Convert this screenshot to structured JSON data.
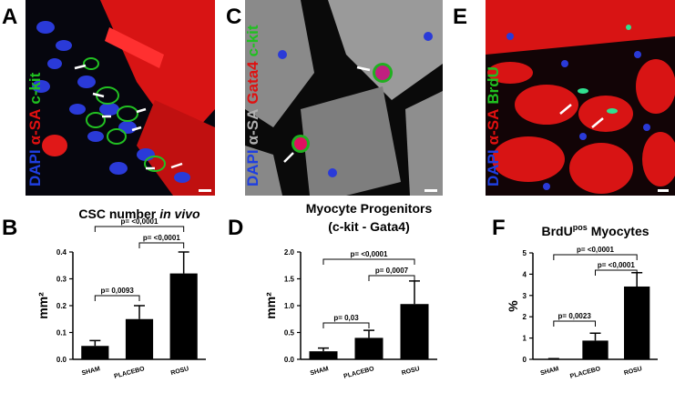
{
  "images": [
    {
      "letter": "A",
      "stains": [
        {
          "text": "DAPI",
          "color": "#1f3fe0"
        },
        {
          "text": "α-SA",
          "color": "#e01010"
        },
        {
          "text": "c-kit",
          "color": "#20c020"
        }
      ]
    },
    {
      "letter": "C",
      "stains": [
        {
          "text": "DAPI",
          "color": "#1f3fe0"
        },
        {
          "text": "α-SA",
          "color": "#b0b0b0"
        },
        {
          "text": "Gata4",
          "color": "#e01010"
        },
        {
          "text": "c-kit",
          "color": "#20c020"
        }
      ]
    },
    {
      "letter": "E",
      "stains": [
        {
          "text": "DAPI",
          "color": "#1f3fe0"
        },
        {
          "text": "α-SA",
          "color": "#e01010"
        },
        {
          "text": "BrdU",
          "color": "#20c020"
        }
      ]
    }
  ],
  "chart_data": [
    {
      "type": "bar",
      "panel": "B",
      "title": [
        [
          {
            "text": "CSC number"
          },
          {
            "text": "in vivo",
            "style": "italic"
          }
        ]
      ],
      "ylabel": "mm²",
      "categories": [
        "SHAM",
        "PLACEBO",
        "ROSU"
      ],
      "values": [
        0.05,
        0.15,
        0.32
      ],
      "errors": [
        0.02,
        0.05,
        0.08
      ],
      "color": "#000000",
      "ylim": [
        0,
        0.4
      ],
      "yticks": [
        {
          "value": 0,
          "label": "0.0"
        },
        0.1,
        0.2,
        0.3,
        0.4
      ],
      "comparisons": [
        {
          "pair": [
            0,
            1
          ],
          "label": "p= 0,0093"
        },
        {
          "pair": [
            0,
            2
          ],
          "label": "p= <0,0001"
        },
        {
          "pair": [
            1,
            2
          ],
          "label": "p= <0,0001"
        }
      ]
    },
    {
      "type": "bar",
      "panel": "D",
      "title": [
        [
          {
            "text": "Myocyte Progenitors"
          }
        ],
        [
          {
            "text": "(c-kit - Gata4)"
          }
        ]
      ],
      "ylabel": "mm²",
      "categories": [
        "SHAM",
        "PLACEBO",
        "ROSU"
      ],
      "values": [
        0.15,
        0.4,
        1.03
      ],
      "errors": [
        0.06,
        0.14,
        0.43
      ],
      "color": "#000000",
      "ylim": [
        0,
        2
      ],
      "yticks": [
        {
          "value": 0,
          "label": "0.0"
        },
        0.5,
        {
          "value": 1,
          "label": "1.0"
        },
        1.5,
        {
          "value": 2,
          "label": "2.0"
        }
      ],
      "comparisons": [
        {
          "pair": [
            0,
            1
          ],
          "label": "p= 0,03"
        },
        {
          "pair": [
            0,
            2
          ],
          "label": "p= <0,0001"
        },
        {
          "pair": [
            1,
            2
          ],
          "label": "p= 0,0007"
        }
      ]
    },
    {
      "type": "bar",
      "panel": "F",
      "title": [
        [
          {
            "text": "BrdU"
          },
          {
            "text": "pos",
            "style": "sup"
          },
          {
            "text": "Myocytes"
          }
        ]
      ],
      "ylabel": "%",
      "categories": [
        "SHAM",
        "PLACEBO",
        "ROSU"
      ],
      "values": [
        0.02,
        0.88,
        3.42
      ],
      "errors": [
        0.01,
        0.35,
        0.65
      ],
      "color": "#000000",
      "ylim": [
        0,
        5
      ],
      "yticks": [
        0,
        1,
        2,
        3,
        4,
        5
      ],
      "comparisons": [
        {
          "pair": [
            0,
            1
          ],
          "label": "p= 0,0023"
        },
        {
          "pair": [
            0,
            2
          ],
          "label": "p= <0,0001"
        },
        {
          "pair": [
            1,
            2
          ],
          "label": "p= <0,0001"
        }
      ]
    }
  ]
}
